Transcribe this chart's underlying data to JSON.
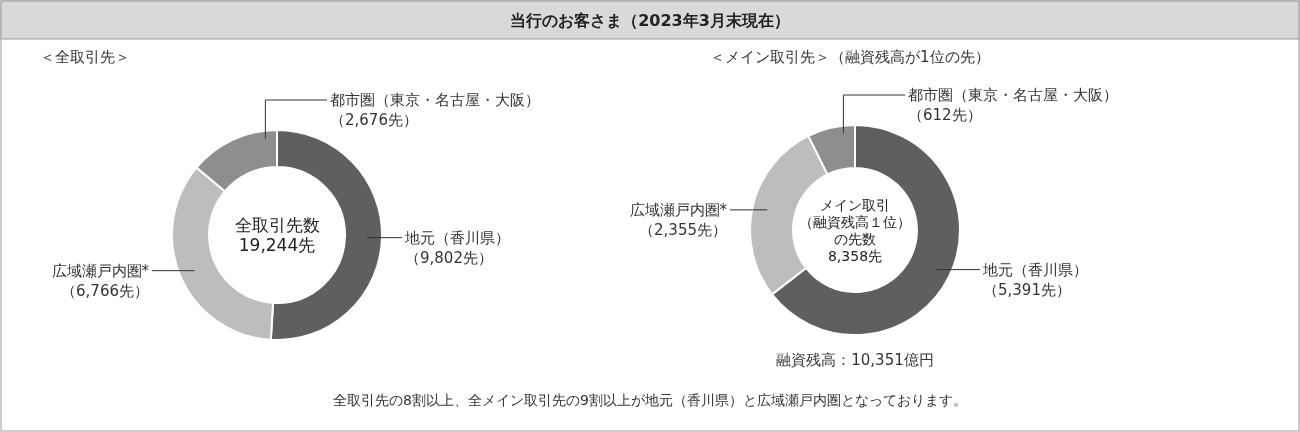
{
  "chart_data": [
    {
      "type": "donut",
      "title": "当行のお客さま（2023年3月末現在）",
      "subtitle": "＜全取引先＞",
      "categories": [
        "地元（香川県）",
        "広域瀬戸内圏*",
        "都市圏（東京・名古屋・大阪）"
      ],
      "values": [
        9802,
        6766,
        2676
      ],
      "value_labels": [
        "（9,802先）",
        "（6,766先）",
        "（2,676先）"
      ],
      "colors": [
        "#5f5f5f",
        "#bdbdbd",
        "#8e8e8e"
      ],
      "annotations": [
        "全取引先数\n19,244先"
      ]
    },
    {
      "type": "donut",
      "subtitle": "＜メイン取引先＞（融資残高が1位の先）",
      "categories": [
        "地元（香川県）",
        "広域瀬戸内圏*",
        "都市圏（東京・名古屋・大阪）"
      ],
      "values": [
        5391,
        2355,
        612
      ],
      "value_labels": [
        "（5,391先）",
        "（2,355先）",
        "（612先）"
      ],
      "colors": [
        "#5f5f5f",
        "#bdbdbd",
        "#8e8e8e"
      ],
      "annotations": [
        "メイン取引",
        "（融資残高１位）",
        "の先数",
        "8,358先",
        "融資残高：10,351億円",
        "全取引先の8割以上、全メイン取引先の9割以上が地元（香川県）と広域瀬戸内圏となっております。"
      ]
    }
  ]
}
